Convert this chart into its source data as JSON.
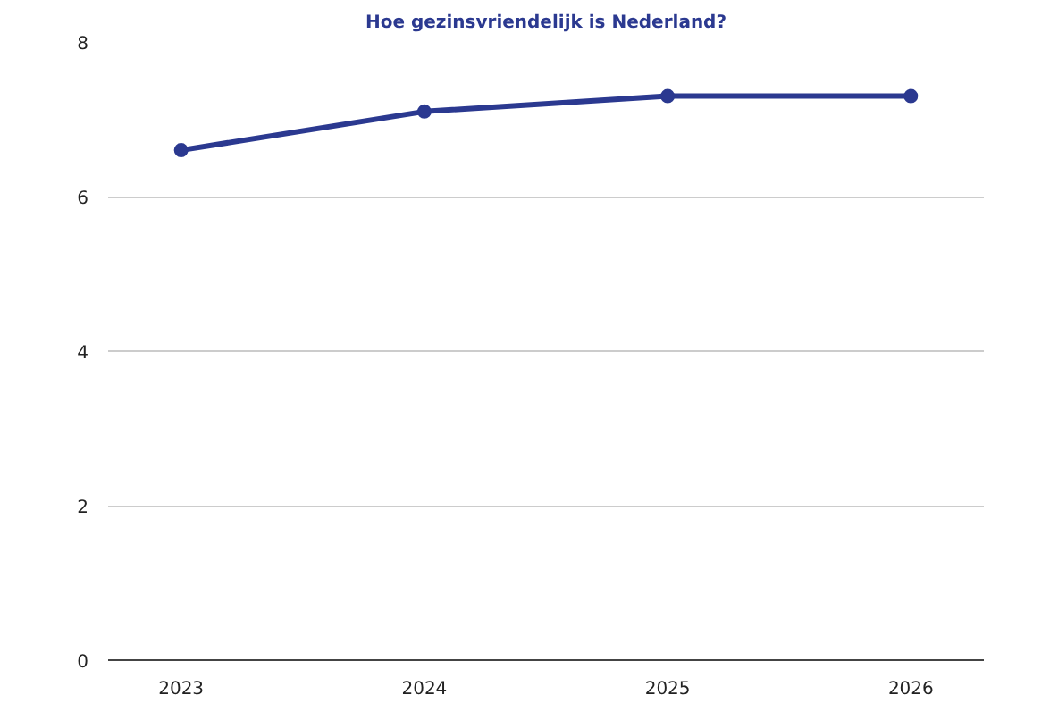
{
  "chart_data": {
    "type": "line",
    "title": "Hoe gezinsvriendelijk is Nederland?",
    "categories": [
      "2023",
      "2024",
      "2025",
      "2026"
    ],
    "series": [
      {
        "color": "#2b3990",
        "values": [
          6.6,
          7.1,
          7.3,
          7.3
        ]
      }
    ],
    "ylim": [
      0,
      8
    ],
    "yticks": [
      0,
      2,
      4,
      6,
      8
    ],
    "grid": "y",
    "marker": "circle",
    "line_style": "solid"
  }
}
